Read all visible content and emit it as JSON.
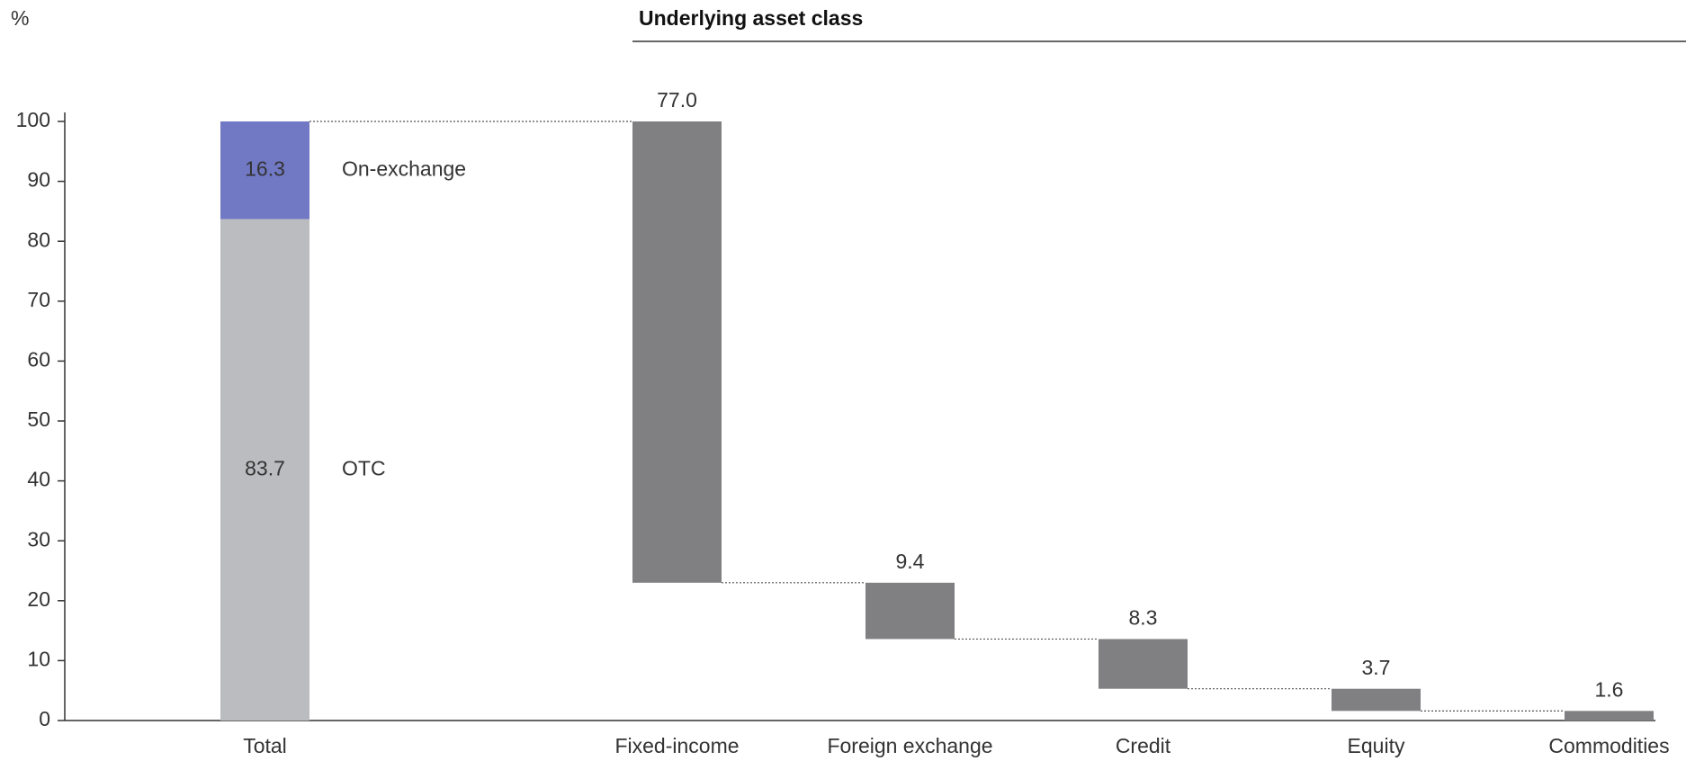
{
  "chart_data": {
    "type": "waterfall",
    "y_label": "%",
    "header": "Underlying asset class",
    "total": {
      "category": "Total",
      "series": [
        {
          "name": "OTC",
          "color": "#bbbcc0",
          "values": [
            83.7
          ]
        },
        {
          "name": "On-exchange",
          "color": "#7279c4",
          "values": [
            16.3
          ]
        }
      ]
    },
    "categories": [
      "Fixed-income",
      "Foreign exchange",
      "Credit",
      "Equity",
      "Commodities"
    ],
    "values": [
      77.0,
      9.4,
      8.3,
      3.7,
      1.6
    ],
    "value_labels": [
      "77.0",
      "9.4",
      "8.3",
      "3.7",
      "1.6"
    ],
    "color": "#808083",
    "ylim": [
      0,
      100
    ],
    "yticks": [
      0,
      10,
      20,
      30,
      40,
      50,
      60,
      70,
      80,
      90,
      100
    ]
  }
}
